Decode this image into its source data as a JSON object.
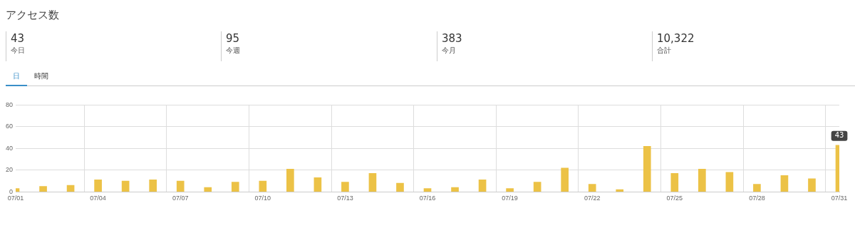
{
  "chart_data": {
    "type": "bar",
    "title": "アクセス数",
    "annotations": [
      "43",
      "今日",
      "95",
      "今週",
      "383",
      "今月",
      "10,322",
      "合計",
      "日",
      "時間"
    ],
    "categories": [
      "07/01",
      null,
      null,
      "07/04",
      null,
      null,
      "07/07",
      null,
      null,
      "07/10",
      null,
      null,
      "07/13",
      null,
      null,
      "07/16",
      null,
      null,
      "07/19",
      null,
      null,
      "07/22",
      null,
      null,
      "07/25",
      null,
      null,
      "07/28",
      null,
      null,
      "07/31"
    ],
    "values": [
      3,
      5,
      6,
      11,
      10,
      11,
      10,
      4,
      9,
      10,
      21,
      13,
      9,
      17,
      8,
      3,
      4,
      11,
      3,
      9,
      22,
      7,
      2,
      42,
      17,
      21,
      18,
      7,
      15,
      12,
      43
    ],
    "value_labels": [
      null,
      null,
      null,
      null,
      null,
      null,
      null,
      null,
      null,
      null,
      null,
      null,
      null,
      null,
      null,
      null,
      null,
      null,
      null,
      null,
      null,
      null,
      null,
      null,
      null,
      null,
      null,
      null,
      null,
      null,
      "43"
    ],
    "color": "#ecc246",
    "ylim": [
      0,
      80
    ],
    "yticks": [
      0,
      20,
      40,
      60,
      80
    ],
    "grid": true,
    "legend": false
  }
}
